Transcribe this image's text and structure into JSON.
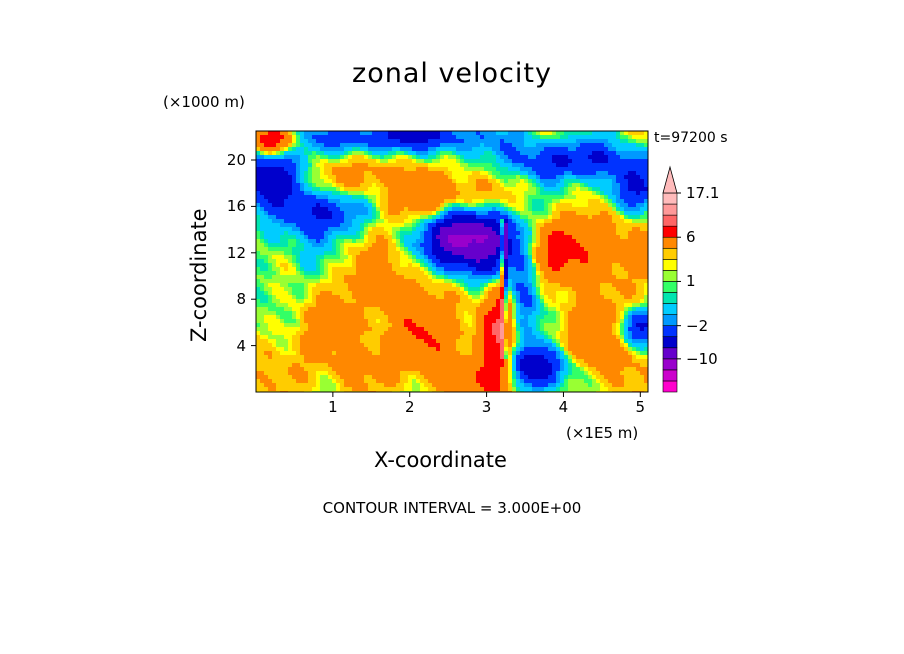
{
  "chart_data": {
    "type": "heatmap",
    "title": "zonal velocity",
    "xlabel": "X-coordinate",
    "ylabel": "Z-coordinate",
    "x_unit": "(×1E5 m)",
    "y_unit": "(×1000 m)",
    "time_label": "t=97200 s",
    "contour_interval": "CONTOUR INTERVAL = 3.000E+00",
    "xlim": [
      0,
      5.1
    ],
    "ylim": [
      0,
      22.5
    ],
    "x_ticks": [
      "1",
      "2",
      "3",
      "4",
      "5"
    ],
    "y_ticks": [
      "4",
      "8",
      "12",
      "16",
      "20"
    ],
    "colorbar": {
      "labels": [
        "17.1",
        "6",
        "1",
        "−2",
        "−10"
      ],
      "levels": [
        {
          "lo": -19,
          "hi": -16,
          "color": "#ff00cc"
        },
        {
          "lo": -16,
          "hi": -13,
          "color": "#cc00cc"
        },
        {
          "lo": -13,
          "hi": -10,
          "color": "#9900cc"
        },
        {
          "lo": -10,
          "hi": -7,
          "color": "#6600cc"
        },
        {
          "lo": -7,
          "hi": -4,
          "color": "#0000cc"
        },
        {
          "lo": -4,
          "hi": -2,
          "color": "#0033ff"
        },
        {
          "lo": -2,
          "hi": -1,
          "color": "#0099ff"
        },
        {
          "lo": -1,
          "hi": 0,
          "color": "#00ccff"
        },
        {
          "lo": 0,
          "hi": 0.5,
          "color": "#00e6b0"
        },
        {
          "lo": 0.5,
          "hi": 1,
          "color": "#33ff66"
        },
        {
          "lo": 1,
          "hi": 1.5,
          "color": "#99ff33"
        },
        {
          "lo": 1.5,
          "hi": 2,
          "color": "#ffff00"
        },
        {
          "lo": 2,
          "hi": 3,
          "color": "#ffcc00"
        },
        {
          "lo": 3,
          "hi": 6,
          "color": "#ff8800"
        },
        {
          "lo": 6,
          "hi": 9,
          "color": "#ff0000"
        },
        {
          "lo": 9,
          "hi": 12,
          "color": "#ff6666"
        },
        {
          "lo": 12,
          "hi": 15,
          "color": "#ff9999"
        },
        {
          "lo": 15,
          "hi": 17.1,
          "color": "#ffbbbb"
        }
      ]
    },
    "features": [
      {
        "x": 3.6,
        "z": 2.0,
        "sx": 0.35,
        "sz": 1.4,
        "v": -10
      },
      {
        "x": 3.0,
        "z": 13.0,
        "sx": 0.45,
        "sz": 2.2,
        "v": -11
      },
      {
        "x": 2.55,
        "z": 13.5,
        "sx": 0.28,
        "sz": 1.8,
        "v": -6
      },
      {
        "x": 0.15,
        "z": 18.5,
        "sx": 0.35,
        "sz": 1.8,
        "v": -7
      },
      {
        "x": 0.9,
        "z": 15.5,
        "sx": 0.35,
        "sz": 1.5,
        "v": -6
      },
      {
        "x": 1.9,
        "z": 22.0,
        "sx": 0.9,
        "sz": 1.0,
        "v": -6
      },
      {
        "x": 4.1,
        "z": 20.0,
        "sx": 0.6,
        "sz": 1.2,
        "v": -6
      },
      {
        "x": 4.9,
        "z": 17.5,
        "sx": 0.3,
        "sz": 1.5,
        "v": -5
      },
      {
        "x": 4.95,
        "z": 5.5,
        "sx": 0.2,
        "sz": 1.2,
        "v": -7
      },
      {
        "x": 3.5,
        "z": 7.0,
        "sx": 0.15,
        "sz": 3.0,
        "v": -4
      },
      {
        "x": 0.2,
        "z": 21.7,
        "sx": 0.2,
        "sz": 0.8,
        "v": 8
      },
      {
        "x": 2.5,
        "z": 16.5,
        "sx": 0.5,
        "sz": 1.5,
        "v": 5
      },
      {
        "x": 4.0,
        "z": 12.5,
        "sx": 0.6,
        "sz": 2.0,
        "v": 6
      },
      {
        "x": 3.15,
        "z": 4.0,
        "sx": 0.15,
        "sz": 3.5,
        "v": 7
      },
      {
        "x": 3.2,
        "z": 1.5,
        "sx": 0.35,
        "sz": 1.5,
        "v": 5
      },
      {
        "x": 2.3,
        "z": 5.0,
        "sx": 0.35,
        "sz": 2.5,
        "v": 4
      },
      {
        "x": 4.5,
        "z": 4.5,
        "sx": 0.45,
        "sz": 2.5,
        "v": 4
      },
      {
        "x": 1.3,
        "z": 18.5,
        "sx": 0.4,
        "sz": 1.2,
        "v": 3
      },
      {
        "x": 0.4,
        "z": 11.0,
        "sx": 0.4,
        "sz": 3.0,
        "v": -1.5
      },
      {
        "x": 0.9,
        "z": 4.5,
        "sx": 0.6,
        "sz": 2.5,
        "v": 1.8
      },
      {
        "x": 1.6,
        "z": 9.5,
        "sx": 0.5,
        "sz": 2.0,
        "v": 2.5
      },
      {
        "x": 1.4,
        "z": 2.0,
        "sx": 0.5,
        "sz": 1.5,
        "v": 1.2
      }
    ]
  }
}
